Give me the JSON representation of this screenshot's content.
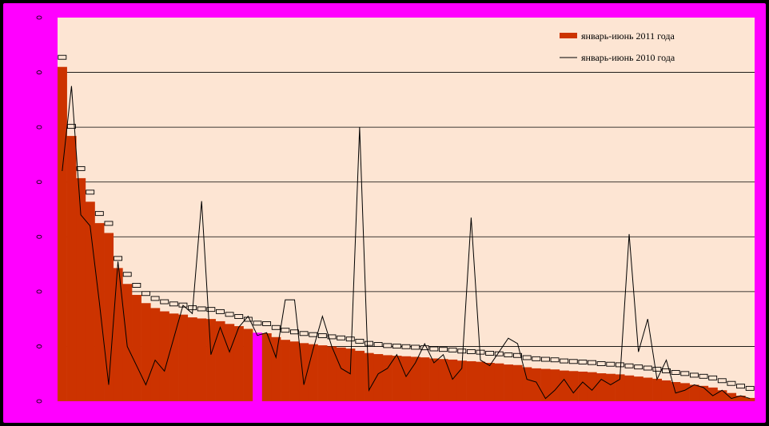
{
  "colors": {
    "outer_border": "#000000",
    "chart_area_bg": "#ff00ff",
    "plot_area_bg": "#fde5d3",
    "bar_fill": "#cc3300",
    "highlight_bar": "#ff00ff",
    "line": "#000000",
    "gridline": "#000000"
  },
  "chart_data": {
    "type": "bar",
    "title": "",
    "xlabel": "",
    "ylabel": "",
    "legend_position": "top-right",
    "grid": true,
    "ylim": [
      0,
      7
    ],
    "yticks": [
      0,
      1,
      2,
      3,
      4,
      5,
      6,
      7
    ],
    "highlight_index": 21,
    "series": [
      {
        "name": "январь-июнь 2011 года",
        "type": "bar",
        "values": [
          6.1,
          4.84,
          4.07,
          3.64,
          3.25,
          3.07,
          2.43,
          2.14,
          1.94,
          1.79,
          1.7,
          1.64,
          1.6,
          1.58,
          1.53,
          1.51,
          1.5,
          1.46,
          1.41,
          1.37,
          1.32,
          1.25,
          1.24,
          1.17,
          1.12,
          1.09,
          1.06,
          1.04,
          1.02,
          1.0,
          0.98,
          0.96,
          0.92,
          0.88,
          0.86,
          0.84,
          0.83,
          0.82,
          0.81,
          0.8,
          0.78,
          0.77,
          0.76,
          0.74,
          0.73,
          0.72,
          0.7,
          0.69,
          0.67,
          0.66,
          0.62,
          0.6,
          0.59,
          0.58,
          0.56,
          0.55,
          0.54,
          0.53,
          0.51,
          0.5,
          0.49,
          0.47,
          0.45,
          0.43,
          0.41,
          0.38,
          0.35,
          0.33,
          0.3,
          0.28,
          0.25,
          0.2,
          0.15,
          0.1,
          0.06
        ]
      },
      {
        "name": "январь-июнь 2010 года",
        "type": "line",
        "values": [
          4.2,
          5.75,
          3.4,
          3.2,
          1.8,
          0.3,
          2.55,
          1.0,
          0.65,
          0.3,
          0.75,
          0.55,
          1.15,
          1.75,
          1.6,
          3.65,
          0.85,
          1.35,
          0.9,
          1.35,
          1.55,
          1.2,
          1.25,
          0.8,
          1.85,
          1.85,
          0.3,
          0.95,
          1.55,
          1.0,
          0.6,
          0.5,
          5.0,
          0.2,
          0.5,
          0.6,
          0.85,
          0.45,
          0.7,
          1.05,
          0.7,
          0.85,
          0.4,
          0.6,
          3.35,
          0.75,
          0.65,
          0.9,
          1.15,
          1.05,
          0.4,
          0.35,
          0.05,
          0.2,
          0.4,
          0.15,
          0.35,
          0.2,
          0.4,
          0.3,
          0.4,
          3.05,
          0.9,
          1.5,
          0.4,
          0.75,
          0.15,
          0.2,
          0.3,
          0.25,
          0.1,
          0.2,
          0.05,
          0.1,
          0.05
        ]
      }
    ]
  }
}
